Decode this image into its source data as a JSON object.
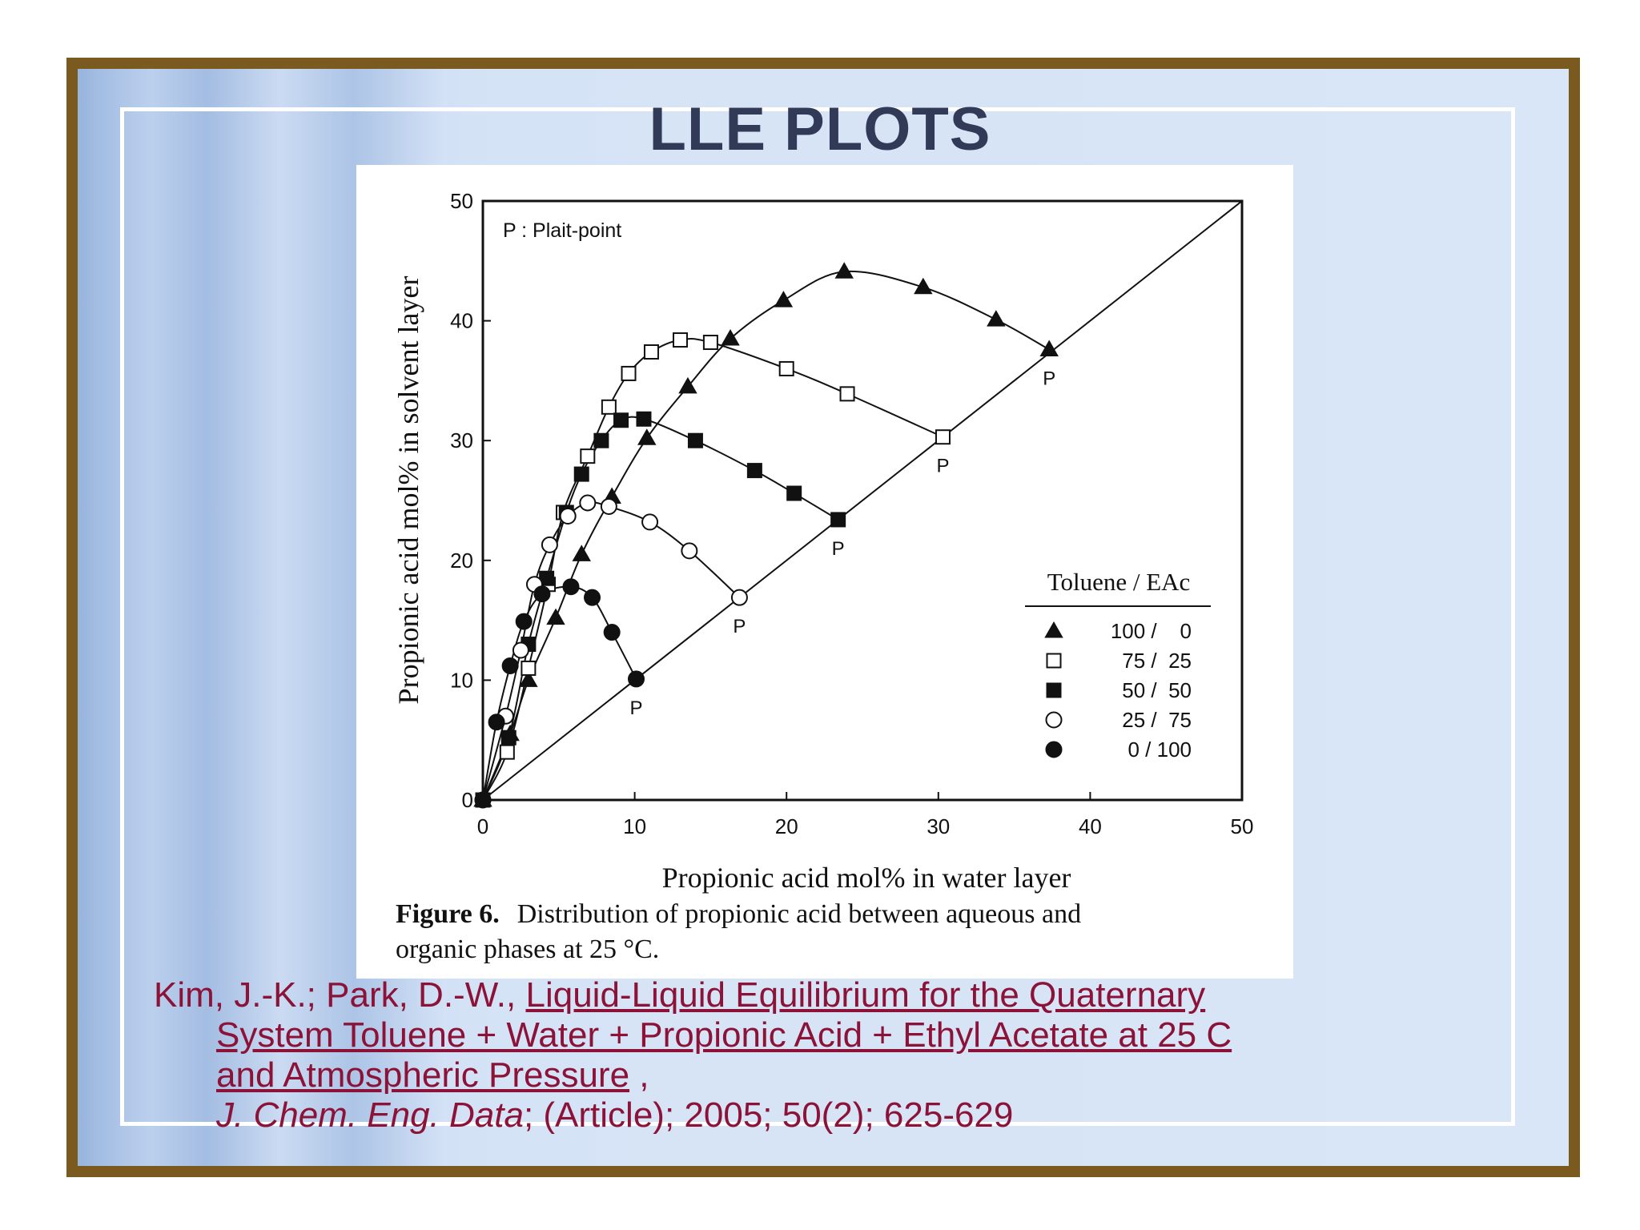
{
  "slide": {
    "title": "LLE PLOTS"
  },
  "figure": {
    "caption_label": "Figure 6.",
    "caption_text_1": "Distribution of propionic acid between aqueous and",
    "caption_text_2": "organic phases at 25 °C."
  },
  "citation": {
    "authors": "Kim, J.-K.; Park, D.-W., ",
    "title_line1": "Liquid-Liquid Equilibrium for the Quaternary",
    "title_line2": "System Toluene + Water + Propionic Acid + Ethyl Acetate at 25 C",
    "title_line3": "and Atmospheric Pressure",
    "comma": " ,",
    "journal": "J. Chem. Eng. Data",
    "details": "; (Article); 2005; 50(2); 625-629"
  },
  "chart_data": {
    "type": "scatter",
    "title": "",
    "xlabel": "Propionic acid mol% in water layer",
    "ylabel": "Propionic acid mol% in solvent layer",
    "xlim": [
      0,
      50
    ],
    "ylim": [
      0,
      50
    ],
    "xticks": [
      0,
      10,
      20,
      30,
      40,
      50
    ],
    "yticks": [
      0,
      10,
      20,
      30,
      40,
      50
    ],
    "grid": false,
    "annotation": "P : Plait-point",
    "plait_label": "P",
    "legend": {
      "title": "Toluene / EAc",
      "placement": "right-middle"
    },
    "diagonal": [
      [
        0,
        0
      ],
      [
        50,
        50
      ]
    ],
    "series": [
      {
        "name": "100 /    0",
        "marker": "triangle-filled",
        "points": [
          [
            0,
            0
          ],
          [
            1.8,
            5.5
          ],
          [
            3.0,
            10.0
          ],
          [
            4.8,
            15.2
          ],
          [
            6.5,
            20.5
          ],
          [
            8.5,
            25.3
          ],
          [
            10.8,
            30.2
          ],
          [
            13.5,
            34.5
          ],
          [
            16.3,
            38.5
          ],
          [
            19.8,
            41.7
          ],
          [
            23.8,
            44.1
          ],
          [
            29.0,
            42.8
          ],
          [
            33.8,
            40.1
          ],
          [
            37.3,
            37.6
          ]
        ],
        "plait": [
          37.3,
          37.6
        ]
      },
      {
        "name": "75 /  25",
        "marker": "square-open",
        "points": [
          [
            0,
            0
          ],
          [
            1.6,
            4.0
          ],
          [
            3.0,
            11.0
          ],
          [
            4.3,
            18.0
          ],
          [
            5.3,
            24.0
          ],
          [
            6.9,
            28.7
          ],
          [
            8.3,
            32.8
          ],
          [
            9.6,
            35.6
          ],
          [
            11.1,
            37.4
          ],
          [
            13.0,
            38.4
          ],
          [
            15.0,
            38.2
          ],
          [
            20.0,
            36.0
          ],
          [
            24.0,
            33.9
          ],
          [
            30.3,
            30.3
          ]
        ],
        "plait": [
          30.3,
          30.3
        ]
      },
      {
        "name": "50 /  50",
        "marker": "square-filled",
        "points": [
          [
            0,
            0
          ],
          [
            1.7,
            5.2
          ],
          [
            3.0,
            13.0
          ],
          [
            4.2,
            18.5
          ],
          [
            5.5,
            24.0
          ],
          [
            6.5,
            27.2
          ],
          [
            7.8,
            30.0
          ],
          [
            9.1,
            31.7
          ],
          [
            10.6,
            31.8
          ],
          [
            14.0,
            30.0
          ],
          [
            17.9,
            27.5
          ],
          [
            20.5,
            25.6
          ],
          [
            23.4,
            23.4
          ]
        ],
        "plait": [
          23.4,
          23.4
        ]
      },
      {
        "name": "25 /  75",
        "marker": "circle-open",
        "points": [
          [
            0,
            0
          ],
          [
            1.5,
            7.0
          ],
          [
            2.5,
            12.5
          ],
          [
            3.4,
            18.0
          ],
          [
            4.4,
            21.3
          ],
          [
            5.6,
            23.7
          ],
          [
            6.9,
            24.8
          ],
          [
            8.3,
            24.5
          ],
          [
            11.0,
            23.2
          ],
          [
            13.6,
            20.8
          ],
          [
            16.9,
            16.9
          ]
        ],
        "plait": [
          16.9,
          16.9
        ]
      },
      {
        "name": "0 / 100",
        "marker": "circle-filled",
        "points": [
          [
            0,
            0
          ],
          [
            0.9,
            6.5
          ],
          [
            1.8,
            11.2
          ],
          [
            2.7,
            14.9
          ],
          [
            3.9,
            17.2
          ],
          [
            5.8,
            17.8
          ],
          [
            7.2,
            16.9
          ],
          [
            8.5,
            14.0
          ],
          [
            10.1,
            10.1
          ]
        ],
        "plait": [
          10.1,
          10.1
        ]
      }
    ]
  }
}
